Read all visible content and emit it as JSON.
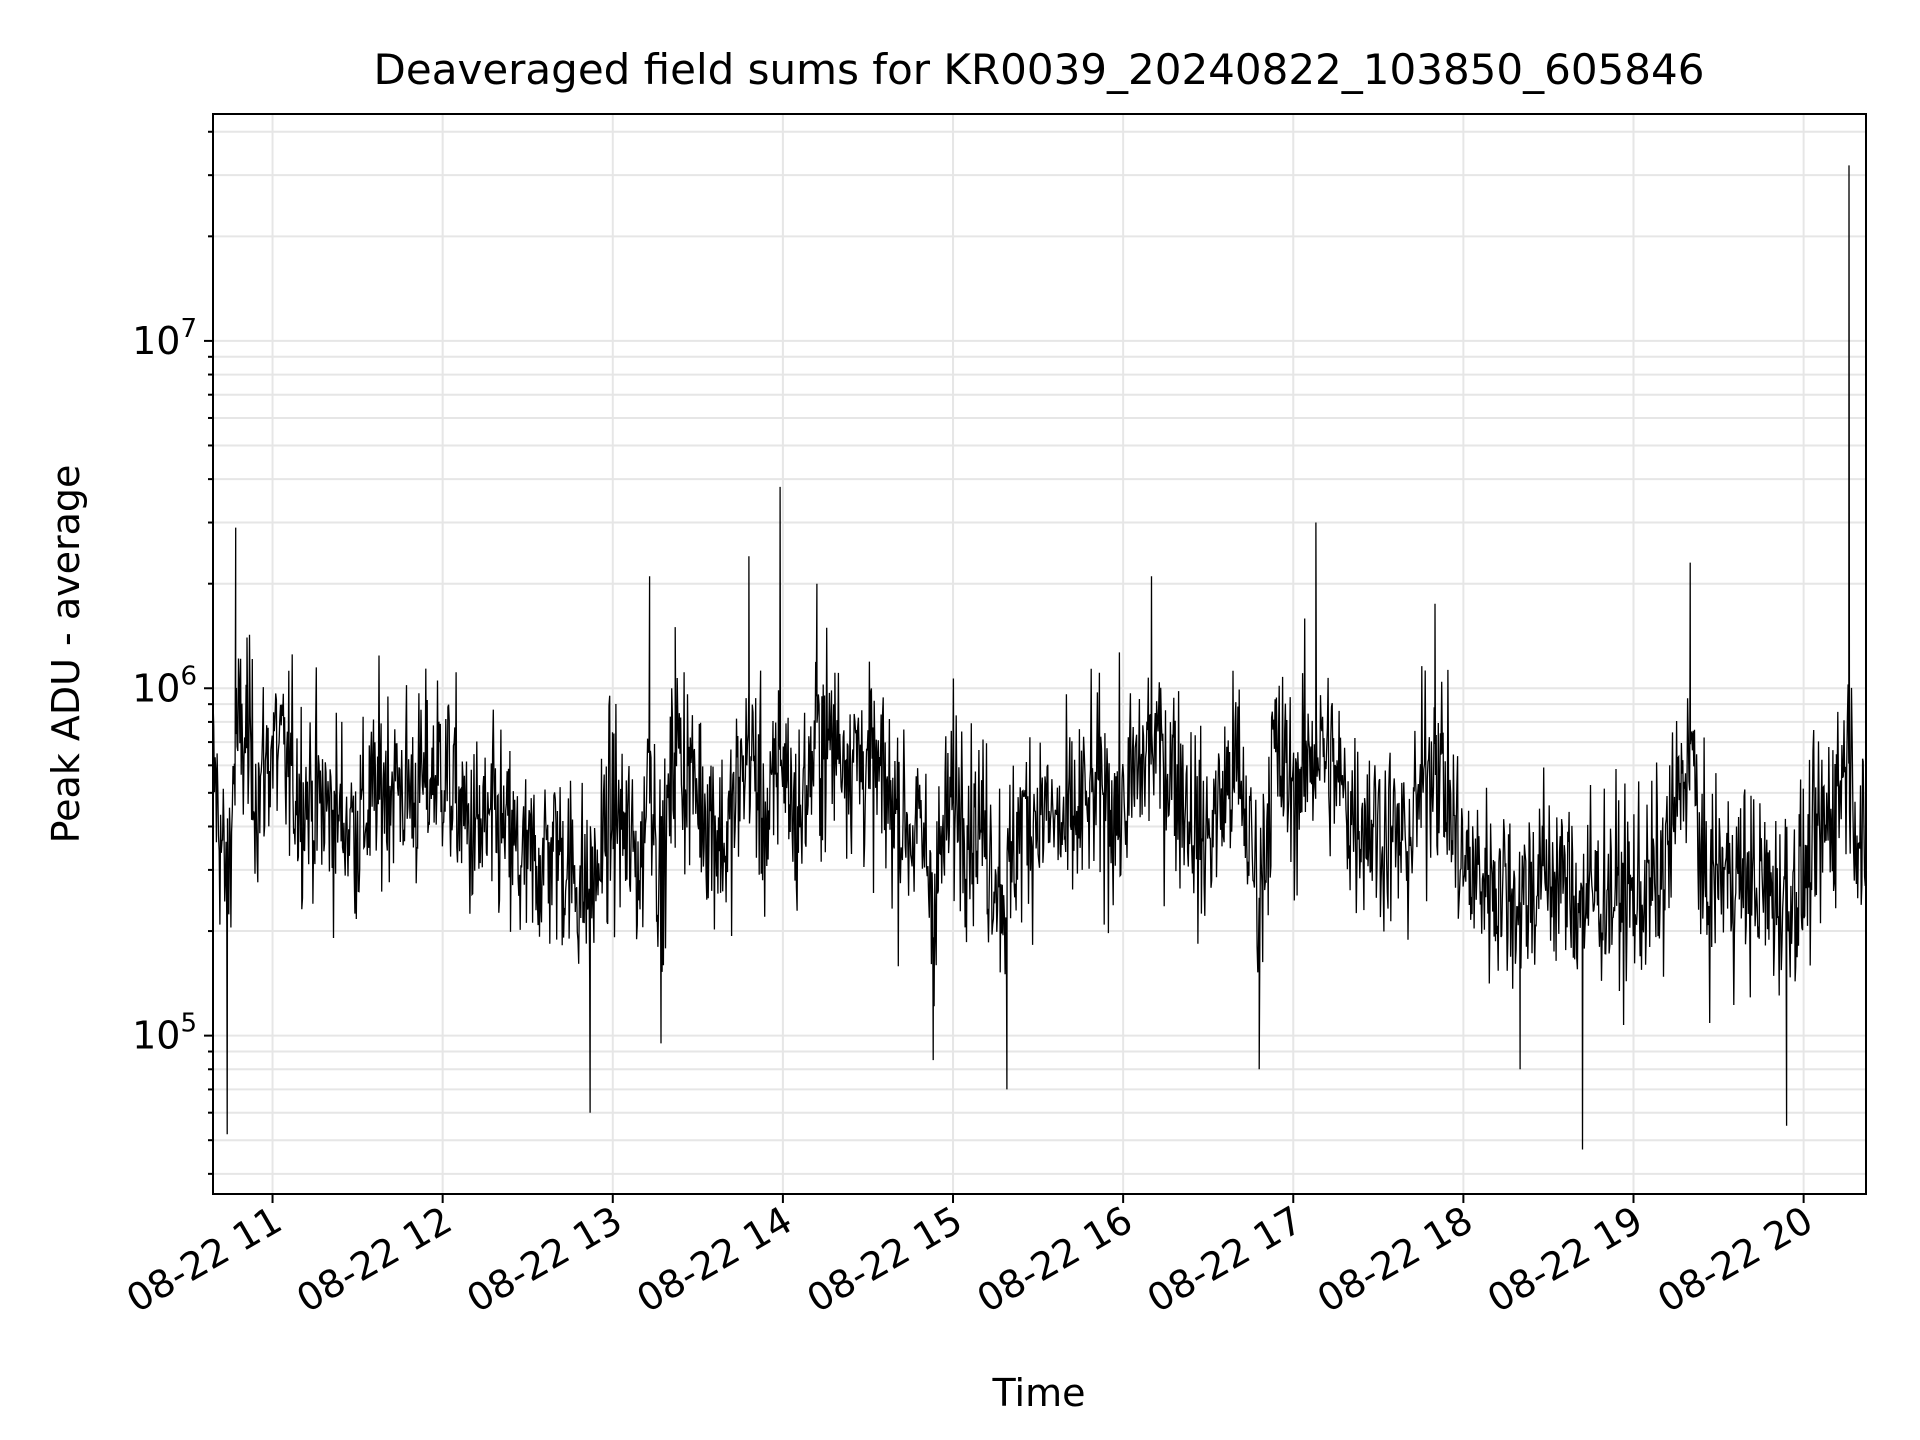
{
  "chart_data": {
    "type": "line",
    "title": "Deaveraged field sums for KR0039_20240822_103850_605846",
    "xlabel": "Time",
    "ylabel": "Peak ADU - average",
    "x_range": [
      "08-22 10:39",
      "08-22 20:22"
    ],
    "ylim": [
      35000,
      45000000
    ],
    "y_scale": "log",
    "y_ticks": [
      {
        "value": 100000,
        "base": "10",
        "exp": "5"
      },
      {
        "value": 1000000,
        "base": "10",
        "exp": "6"
      },
      {
        "value": 10000000,
        "base": "10",
        "exp": "7"
      }
    ],
    "x_ticks": [
      {
        "time": "08-22 11:00",
        "label": "08-22 11"
      },
      {
        "time": "08-22 12:00",
        "label": "08-22 12"
      },
      {
        "time": "08-22 13:00",
        "label": "08-22 13"
      },
      {
        "time": "08-22 14:00",
        "label": "08-22 14"
      },
      {
        "time": "08-22 15:00",
        "label": "08-22 15"
      },
      {
        "time": "08-22 16:00",
        "label": "08-22 16"
      },
      {
        "time": "08-22 17:00",
        "label": "08-22 17"
      },
      {
        "time": "08-22 18:00",
        "label": "08-22 18"
      },
      {
        "time": "08-22 19:00",
        "label": "08-22 19"
      },
      {
        "time": "08-22 20:00",
        "label": "08-22 20"
      }
    ],
    "grid": true,
    "line_color": "#000000",
    "series": [
      {
        "name": "",
        "x": [
          "08-22 10:39",
          "08-22 10:44",
          "08-22 10:47",
          "08-22 10:51",
          "08-22 10:55",
          "08-22 11:00",
          "08-22 11:10",
          "08-22 11:19",
          "08-22 11:30",
          "08-22 11:40",
          "08-22 11:50",
          "08-22 12:00",
          "08-22 12:10",
          "08-22 12:20",
          "08-22 12:29",
          "08-22 12:40",
          "08-22 12:52",
          "08-22 13:00",
          "08-22 13:10",
          "08-22 13:13",
          "08-22 13:17",
          "08-22 13:22",
          "08-22 13:30",
          "08-22 13:40",
          "08-22 13:48",
          "08-22 13:55",
          "08-22 13:59",
          "08-22 14:05",
          "08-22 14:12",
          "08-22 14:20",
          "08-22 14:30",
          "08-22 14:40",
          "08-22 14:50",
          "08-22 14:53",
          "08-22 15:00",
          "08-22 15:10",
          "08-22 15:19",
          "08-22 15:23",
          "08-22 15:30",
          "08-22 15:40",
          "08-22 15:50",
          "08-22 16:00",
          "08-22 16:10",
          "08-22 16:20",
          "08-22 16:28",
          "08-22 16:40",
          "08-22 16:48",
          "08-22 16:53",
          "08-22 17:00",
          "08-22 17:08",
          "08-22 17:13",
          "08-22 17:20",
          "08-22 17:30",
          "08-22 17:40",
          "08-22 17:50",
          "08-22 18:00",
          "08-22 18:10",
          "08-22 18:20",
          "08-22 18:30",
          "08-22 18:40",
          "08-22 18:42",
          "08-22 18:50",
          "08-22 19:00",
          "08-22 19:10",
          "08-22 19:20",
          "08-22 19:25",
          "08-22 19:30",
          "08-22 19:40",
          "08-22 19:50",
          "08-22 19:54",
          "08-22 20:00",
          "08-22 20:10",
          "08-22 20:16",
          "08-22 20:22"
        ],
        "y": [
          600000,
          52000,
          2900000,
          1400000,
          500000,
          700000,
          500000,
          450000,
          400000,
          550000,
          500000,
          600000,
          380000,
          400000,
          300000,
          350000,
          60000,
          450000,
          300000,
          2100000,
          95000,
          1500000,
          500000,
          350000,
          2400000,
          380000,
          3800000,
          400000,
          2000000,
          1100000,
          600000,
          450000,
          350000,
          85000,
          500000,
          400000,
          70000,
          400000,
          450000,
          380000,
          500000,
          450000,
          2100000,
          550000,
          350000,
          600000,
          80000,
          650000,
          500000,
          3000000,
          600000,
          450000,
          400000,
          350000,
          1750000,
          300000,
          280000,
          80000,
          300000,
          250000,
          47000,
          260000,
          230000,
          280000,
          2300000,
          250000,
          300000,
          280000,
          250000,
          55000,
          280000,
          450000,
          32000000,
          180000
        ]
      }
    ]
  }
}
